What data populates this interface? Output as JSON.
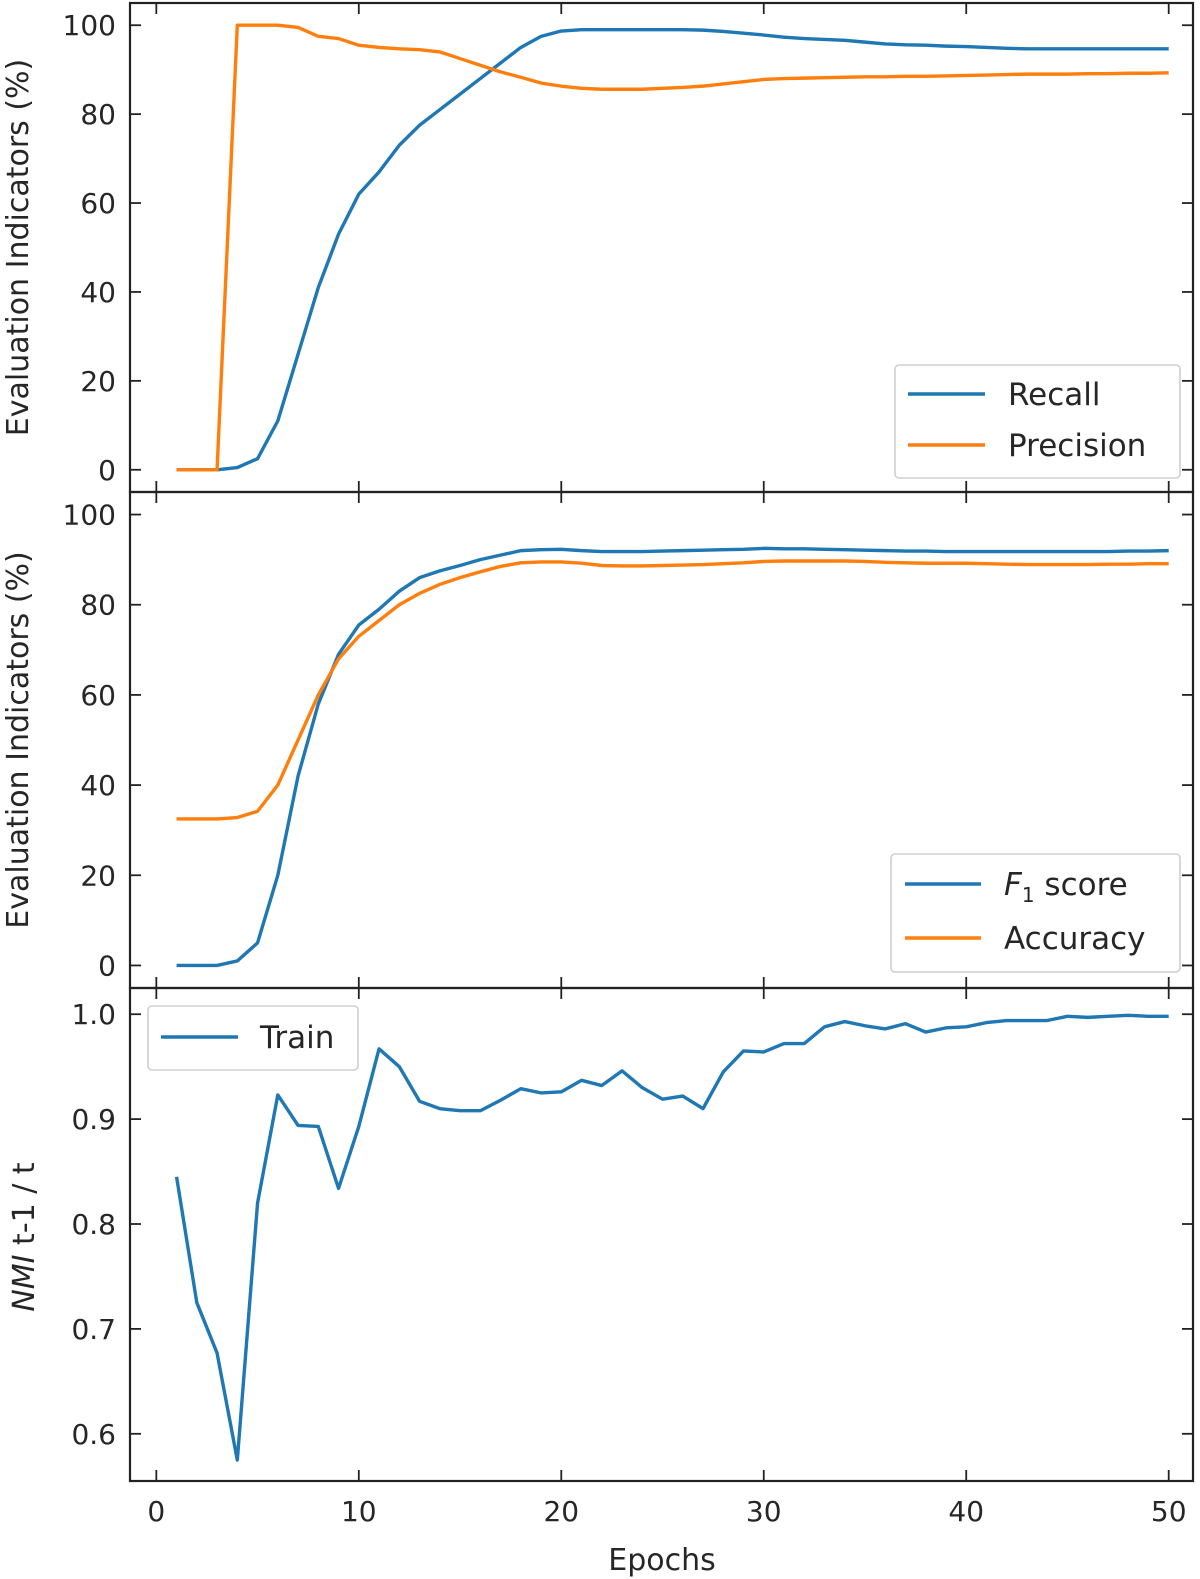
{
  "chart_data": [
    {
      "type": "line",
      "xlabel": "",
      "ylabel": "Evaluation Indicators (%)",
      "xlim": [
        -1.3,
        51.2
      ],
      "ylim": [
        -5,
        105
      ],
      "xticks": [
        0,
        10,
        20,
        30,
        40,
        50
      ],
      "yticks": [
        0,
        20,
        40,
        60,
        80,
        100
      ],
      "show_x_tick_labels": false,
      "legend": {
        "position": "lower-right",
        "entries": [
          "Recall",
          "Precision"
        ]
      },
      "series": [
        {
          "name": "Recall",
          "color": "#1f77b4",
          "x": [
            1,
            2,
            3,
            4,
            5,
            6,
            7,
            8,
            9,
            10,
            11,
            12,
            13,
            14,
            15,
            16,
            17,
            18,
            19,
            20,
            21,
            22,
            23,
            24,
            25,
            26,
            27,
            28,
            29,
            30,
            31,
            32,
            33,
            34,
            35,
            36,
            37,
            38,
            39,
            40,
            41,
            42,
            43,
            44,
            45,
            46,
            47,
            48,
            49,
            50
          ],
          "values": [
            0,
            0,
            0,
            0.5,
            2.5,
            11,
            26,
            41,
            53,
            62,
            67,
            73,
            77.5,
            81,
            84.5,
            88,
            91.5,
            95,
            97.5,
            98.7,
            99,
            99,
            99,
            99,
            99,
            99,
            98.9,
            98.6,
            98.2,
            97.8,
            97.3,
            97,
            96.8,
            96.6,
            96.2,
            95.8,
            95.6,
            95.5,
            95.3,
            95.2,
            95,
            94.8,
            94.7,
            94.7,
            94.7,
            94.7,
            94.7,
            94.7,
            94.7,
            94.7
          ]
        },
        {
          "name": "Precision",
          "color": "#ff7f0e",
          "x": [
            1,
            2,
            3,
            4,
            5,
            6,
            7,
            8,
            9,
            10,
            11,
            12,
            13,
            14,
            15,
            16,
            17,
            18,
            19,
            20,
            21,
            22,
            23,
            24,
            25,
            26,
            27,
            28,
            29,
            30,
            31,
            32,
            33,
            34,
            35,
            36,
            37,
            38,
            39,
            40,
            41,
            42,
            43,
            44,
            45,
            46,
            47,
            48,
            49,
            50
          ],
          "values": [
            0,
            0,
            0,
            100,
            100,
            100,
            99.5,
            97.5,
            97,
            95.5,
            95,
            94.7,
            94.5,
            94,
            92.5,
            91,
            89.5,
            88.3,
            87,
            86.3,
            85.8,
            85.6,
            85.6,
            85.6,
            85.8,
            86,
            86.3,
            86.8,
            87.3,
            87.8,
            88,
            88.1,
            88.2,
            88.3,
            88.4,
            88.4,
            88.5,
            88.5,
            88.6,
            88.7,
            88.8,
            88.9,
            89,
            89,
            89,
            89.1,
            89.1,
            89.2,
            89.2,
            89.3
          ]
        }
      ]
    },
    {
      "type": "line",
      "xlabel": "",
      "ylabel": "Evaluation Indicators (%)",
      "xlim": [
        -1.3,
        51.2
      ],
      "ylim": [
        -5,
        105
      ],
      "xticks": [
        0,
        10,
        20,
        30,
        40,
        50
      ],
      "yticks": [
        0,
        20,
        40,
        60,
        80,
        100
      ],
      "show_x_tick_labels": false,
      "legend": {
        "position": "lower-right",
        "entries": [
          "F1 score",
          "Accuracy"
        ]
      },
      "series": [
        {
          "name": "F1 score",
          "color": "#1f77b4",
          "x": [
            1,
            2,
            3,
            4,
            5,
            6,
            7,
            8,
            9,
            10,
            11,
            12,
            13,
            14,
            15,
            16,
            17,
            18,
            19,
            20,
            21,
            22,
            23,
            24,
            25,
            26,
            27,
            28,
            29,
            30,
            31,
            32,
            33,
            34,
            35,
            36,
            37,
            38,
            39,
            40,
            41,
            42,
            43,
            44,
            45,
            46,
            47,
            48,
            49,
            50
          ],
          "values": [
            0,
            0,
            0,
            1,
            5,
            20,
            42,
            58,
            69,
            75.5,
            79,
            83,
            86,
            87.5,
            88.7,
            90,
            91,
            92,
            92.2,
            92.3,
            92,
            91.8,
            91.8,
            91.8,
            91.9,
            92,
            92.1,
            92.2,
            92.3,
            92.5,
            92.4,
            92.4,
            92.3,
            92.2,
            92.1,
            92,
            91.9,
            91.9,
            91.8,
            91.8,
            91.8,
            91.8,
            91.8,
            91.8,
            91.8,
            91.8,
            91.8,
            91.9,
            91.9,
            92
          ]
        },
        {
          "name": "Accuracy",
          "color": "#ff7f0e",
          "x": [
            1,
            2,
            3,
            4,
            5,
            6,
            7,
            8,
            9,
            10,
            11,
            12,
            13,
            14,
            15,
            16,
            17,
            18,
            19,
            20,
            21,
            22,
            23,
            24,
            25,
            26,
            27,
            28,
            29,
            30,
            31,
            32,
            33,
            34,
            35,
            36,
            37,
            38,
            39,
            40,
            41,
            42,
            43,
            44,
            45,
            46,
            47,
            48,
            49,
            50
          ],
          "values": [
            32.5,
            32.5,
            32.5,
            32.8,
            34.2,
            40,
            50,
            60,
            68,
            73,
            76.5,
            80,
            82.5,
            84.5,
            86,
            87.3,
            88.5,
            89.3,
            89.5,
            89.5,
            89.2,
            88.7,
            88.6,
            88.6,
            88.7,
            88.8,
            88.9,
            89.1,
            89.3,
            89.6,
            89.7,
            89.7,
            89.7,
            89.7,
            89.6,
            89.4,
            89.3,
            89.2,
            89.2,
            89.2,
            89.1,
            89,
            88.9,
            88.9,
            88.9,
            88.9,
            89,
            89,
            89.1,
            89.1
          ]
        }
      ]
    },
    {
      "type": "line",
      "xlabel": "Epochs",
      "ylabel": "NMI t-1 / t",
      "xlim": [
        -1.3,
        51.2
      ],
      "ylim": [
        0.555,
        1.025
      ],
      "xticks": [
        0,
        10,
        20,
        30,
        40,
        50
      ],
      "yticks": [
        0.6,
        0.7,
        0.8,
        0.9,
        1.0
      ],
      "ytick_labels": [
        "0.6",
        "0.7",
        "0.8",
        "0.9",
        "1.0"
      ],
      "show_x_tick_labels": true,
      "legend": {
        "position": "upper-left",
        "entries": [
          "Train"
        ]
      },
      "series": [
        {
          "name": "Train",
          "color": "#1f77b4",
          "x": [
            1,
            2,
            3,
            4,
            5,
            6,
            7,
            8,
            9,
            10,
            11,
            12,
            13,
            14,
            15,
            16,
            17,
            18,
            19,
            20,
            21,
            22,
            23,
            24,
            25,
            26,
            27,
            28,
            29,
            30,
            31,
            32,
            33,
            34,
            35,
            36,
            37,
            38,
            39,
            40,
            41,
            42,
            43,
            44,
            45,
            46,
            47,
            48,
            49,
            50
          ],
          "values": [
            0.845,
            0.725,
            0.677,
            0.575,
            0.82,
            0.923,
            0.894,
            0.893,
            0.834,
            0.893,
            0.967,
            0.95,
            0.917,
            0.91,
            0.908,
            0.908,
            0.918,
            0.929,
            0.925,
            0.926,
            0.937,
            0.932,
            0.946,
            0.93,
            0.919,
            0.922,
            0.91,
            0.945,
            0.965,
            0.964,
            0.972,
            0.972,
            0.988,
            0.993,
            0.989,
            0.986,
            0.991,
            0.983,
            0.987,
            0.988,
            0.992,
            0.994,
            0.994,
            0.994,
            0.998,
            0.997,
            0.998,
            0.999,
            0.998,
            0.998
          ]
        }
      ]
    }
  ]
}
